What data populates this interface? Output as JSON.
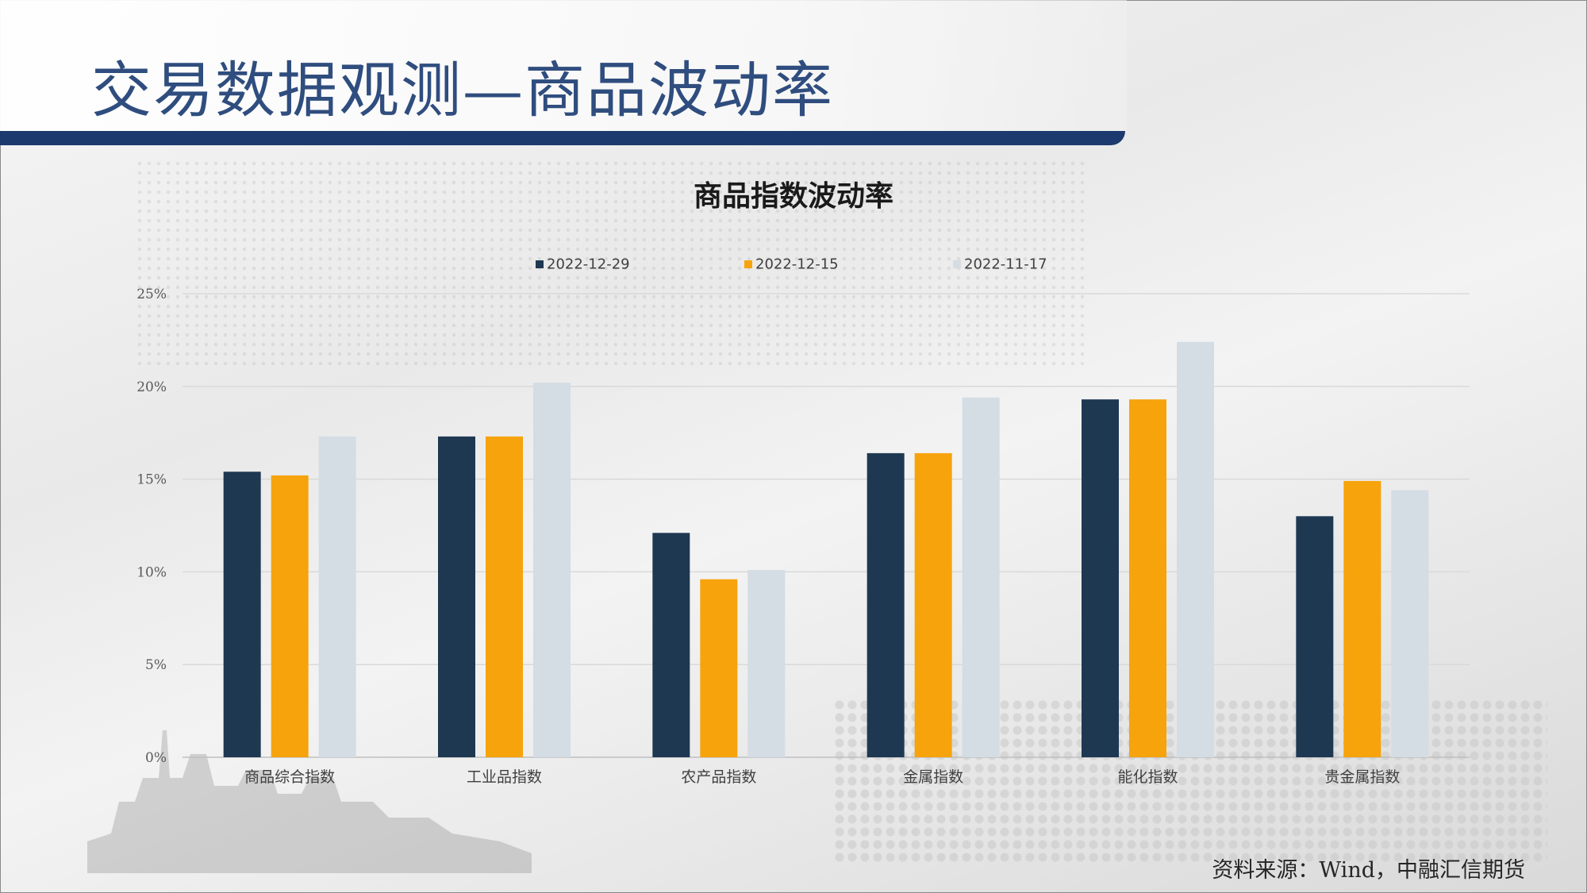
{
  "page": {
    "title": "交易数据观测—商品波动率",
    "source": "资料来源：Wind，中融汇信期货"
  },
  "colors": {
    "title": "#2f4d7e",
    "band": "#1c3a6e",
    "series": [
      "#1f3852",
      "#f6a30c",
      "#d4dce4"
    ]
  },
  "chart_data": {
    "type": "bar",
    "title": "商品指数波动率",
    "legend_position": "top",
    "grid": true,
    "ylim": [
      0,
      25
    ],
    "y_unit": "%",
    "y_ticks": [
      "0%",
      "5%",
      "10%",
      "15%",
      "20%",
      "25%"
    ],
    "categories": [
      "商品综合指数",
      "工业品指数",
      "农产品指数",
      "金属指数",
      "能化指数",
      "贵金属指数"
    ],
    "series": [
      {
        "name": "2022-12-29",
        "values": [
          15.4,
          17.3,
          12.1,
          16.4,
          19.3,
          13.0
        ]
      },
      {
        "name": "2022-12-15",
        "values": [
          15.2,
          17.3,
          9.6,
          16.4,
          19.3,
          14.9
        ]
      },
      {
        "name": "2022-11-17",
        "values": [
          17.3,
          20.2,
          10.1,
          19.4,
          22.4,
          14.4
        ]
      }
    ]
  }
}
